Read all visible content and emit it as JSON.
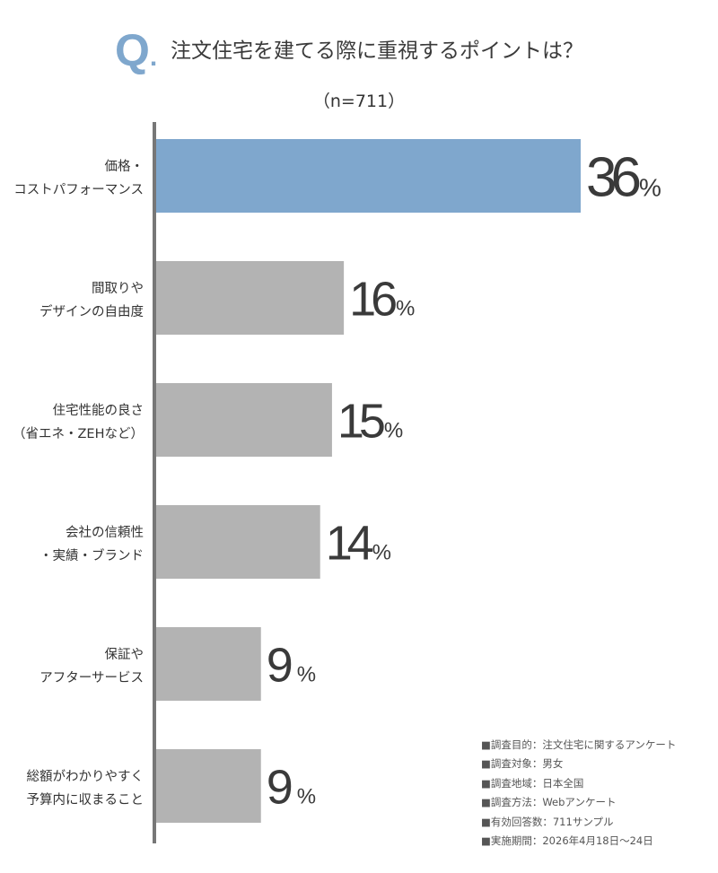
{
  "header": {
    "q_letter": "Q",
    "q_dot": ".",
    "title": "注文住宅を建てる際に重視するポイントは？",
    "sample": "（n=711）"
  },
  "colors": {
    "highlight": "#7fa7cd",
    "bar": "#b3b3b3",
    "axis": "#777777",
    "text": "#333333"
  },
  "chart_data": {
    "type": "bar",
    "orientation": "horizontal",
    "categories": [
      [
        "価格・",
        "コストパフォーマンス"
      ],
      [
        "間取りや",
        "デザインの自由度"
      ],
      [
        "住宅性能の良さ",
        "（省エネ・ZEHなど）"
      ],
      [
        "会社の信頼性",
        "・実績・ブランド"
      ],
      [
        "保証や",
        "アフターサービス"
      ],
      [
        "総額がわかりやすく",
        "予算内に収まること"
      ]
    ],
    "values": [
      36,
      16,
      15,
      14,
      9,
      9
    ],
    "unit": "%",
    "highlight_index": 0,
    "xlim": [
      0,
      40
    ],
    "grid": false,
    "legend": "none"
  },
  "notes": [
    "■調査目的：注文住宅に関するアンケート",
    "■調査対象：男女",
    "■調査地域：日本全国",
    "■調査方法：Webアンケート",
    "■有効回答数：711サンプル",
    "■実施期間：2026年4月18日～24日"
  ]
}
